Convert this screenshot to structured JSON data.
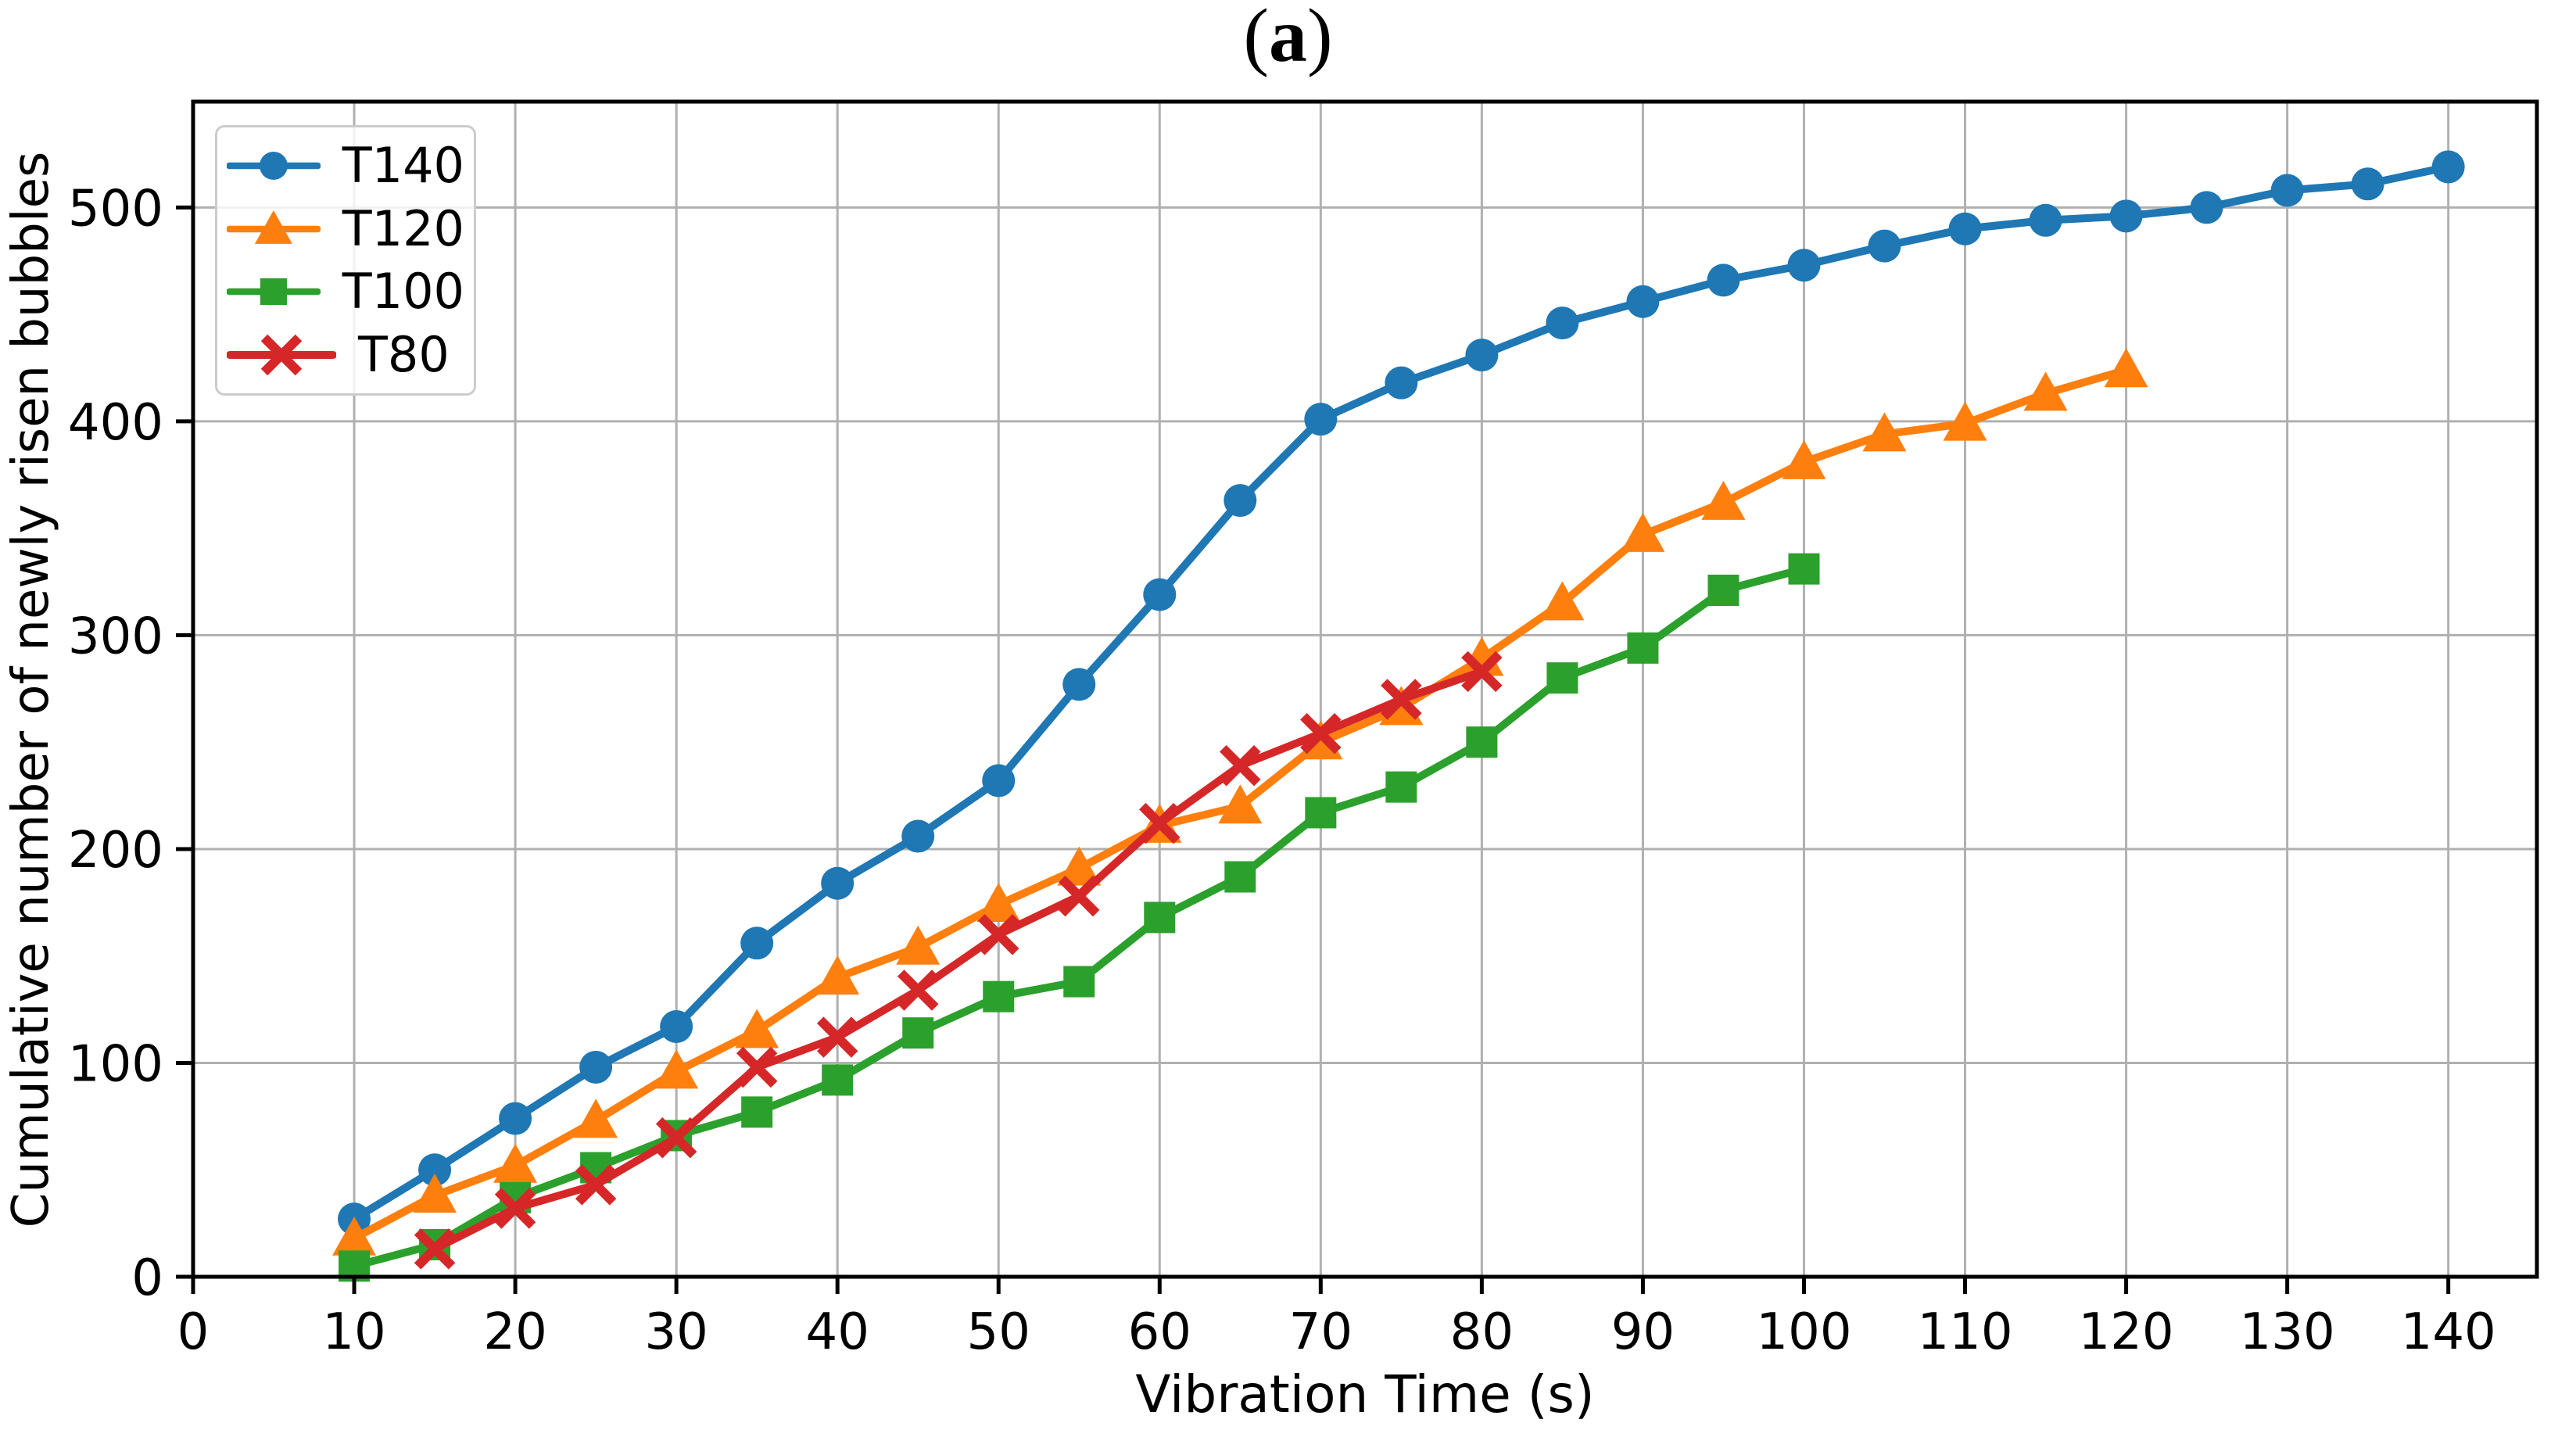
{
  "title": {
    "open": "(",
    "letter": "a",
    "close": ")"
  },
  "chart_data": {
    "type": "line",
    "title": "(a)",
    "xlabel": "Vibration Time (s)",
    "ylabel": "Cumulative number of newly risen bubbles",
    "xlim": [
      0,
      145.5
    ],
    "ylim": [
      0,
      549.5
    ],
    "xticks": [
      0,
      10,
      20,
      30,
      40,
      50,
      60,
      70,
      80,
      90,
      100,
      110,
      120,
      130,
      140
    ],
    "yticks": [
      0,
      100,
      200,
      300,
      400,
      500
    ],
    "grid": true,
    "grid_color": "#b0b0b0",
    "spine_color": "#000000",
    "legend_position": "upper-left",
    "series": [
      {
        "name": "T140",
        "color": "#1f77b4",
        "marker": "circle",
        "x": [
          10,
          15,
          20,
          25,
          30,
          35,
          40,
          45,
          50,
          55,
          60,
          65,
          70,
          75,
          80,
          85,
          90,
          95,
          100,
          105,
          110,
          115,
          120,
          125,
          130,
          135,
          140
        ],
        "y": [
          27,
          50,
          74,
          98,
          117,
          156,
          184,
          206,
          232,
          277,
          319,
          363,
          401,
          418,
          431,
          446,
          456,
          466,
          473,
          482,
          490,
          494,
          496,
          500,
          508,
          511,
          519
        ]
      },
      {
        "name": "T120",
        "color": "#ff7f0e",
        "marker": "triangle",
        "x": [
          10,
          15,
          20,
          25,
          30,
          35,
          40,
          45,
          50,
          55,
          60,
          65,
          70,
          75,
          80,
          85,
          90,
          95,
          100,
          105,
          110,
          115,
          120
        ],
        "y": [
          18,
          38,
          52,
          73,
          96,
          115,
          140,
          154,
          174,
          191,
          211,
          220,
          250,
          266,
          289,
          315,
          347,
          362,
          381,
          394,
          399,
          413,
          424
        ]
      },
      {
        "name": "T100",
        "color": "#2ca02c",
        "marker": "square",
        "x": [
          10,
          15,
          20,
          25,
          30,
          35,
          40,
          45,
          50,
          55,
          60,
          65,
          70,
          75,
          80,
          85,
          90,
          95,
          100
        ],
        "y": [
          5,
          15,
          37,
          51,
          66,
          77,
          92,
          114,
          131,
          138,
          168,
          187,
          217,
          229,
          250,
          280,
          294,
          321,
          331
        ]
      },
      {
        "name": "T80",
        "color": "#d62728",
        "marker": "x",
        "x": [
          15,
          20,
          25,
          30,
          35,
          40,
          45,
          50,
          55,
          60,
          65,
          70,
          75,
          80
        ],
        "y": [
          13,
          32,
          43,
          65,
          98,
          112,
          134,
          160,
          178,
          212,
          239,
          254,
          270,
          283
        ]
      }
    ]
  }
}
